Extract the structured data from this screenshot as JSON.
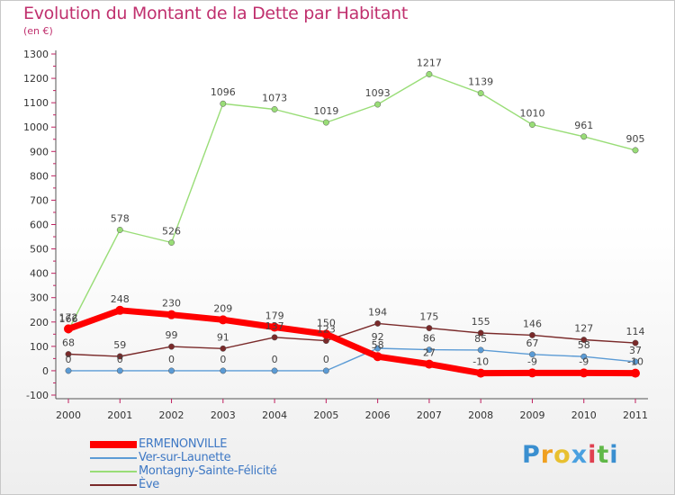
{
  "header": {
    "title": "Evolution du Montant de la Dette par Habitant",
    "subtitle": "(en €)"
  },
  "chart_data": {
    "type": "line",
    "x": [
      2000,
      2001,
      2002,
      2003,
      2004,
      2005,
      2006,
      2007,
      2008,
      2009,
      2010,
      2011
    ],
    "ylim": [
      -100,
      1300
    ],
    "yticks": [
      -100,
      0,
      100,
      200,
      300,
      400,
      500,
      600,
      700,
      800,
      900,
      1000,
      1100,
      1200,
      1300
    ],
    "grid": false,
    "legend_position": "bottom",
    "series": [
      {
        "name": "ERMENONVILLE",
        "color": "#ff0000",
        "values": [
          172,
          248,
          230,
          209,
          179,
          150,
          58,
          27,
          -10,
          -9,
          -9,
          -10
        ],
        "labels": [
          "172",
          "248",
          "230",
          "209",
          "179",
          "150",
          "58",
          "27",
          "-10",
          "-9",
          "-9",
          "-10"
        ]
      },
      {
        "name": "Ver-sur-Launette",
        "color": "#5b9bd5",
        "values": [
          0,
          0,
          0,
          0,
          0,
          0,
          92,
          86,
          85,
          67,
          58,
          37
        ],
        "labels": [
          "0",
          "0",
          "0",
          "0",
          "0",
          "0",
          "92",
          "86",
          "85",
          "67",
          "58",
          "37"
        ]
      },
      {
        "name": "Montagny-Sainte-Félicité",
        "color": "#99dd77",
        "values": [
          166,
          578,
          526,
          1096,
          1073,
          1019,
          1093,
          1217,
          1139,
          1010,
          961,
          905
        ],
        "labels": [
          "166",
          "578",
          "526",
          "1096",
          "1073",
          "1019",
          "1093",
          "1217",
          "1139",
          "1010",
          "961",
          "905"
        ]
      },
      {
        "name": "Ève",
        "color": "#7a2a2a",
        "values": [
          68,
          59,
          99,
          91,
          137,
          123,
          194,
          175,
          155,
          146,
          127,
          114
        ],
        "labels": [
          "68",
          "59",
          "99",
          "91",
          "137",
          "123",
          "194",
          "175",
          "155",
          "146",
          "127",
          "114"
        ]
      }
    ]
  },
  "branding": {
    "logo_letters": [
      "P",
      "r",
      "o",
      "x",
      "i",
      "t",
      "i"
    ],
    "logo_colors": [
      "#3a8fd0",
      "#f0a020",
      "#e8c030",
      "#4aa0e0",
      "#e04050",
      "#60b848",
      "#3a8fd0"
    ]
  }
}
